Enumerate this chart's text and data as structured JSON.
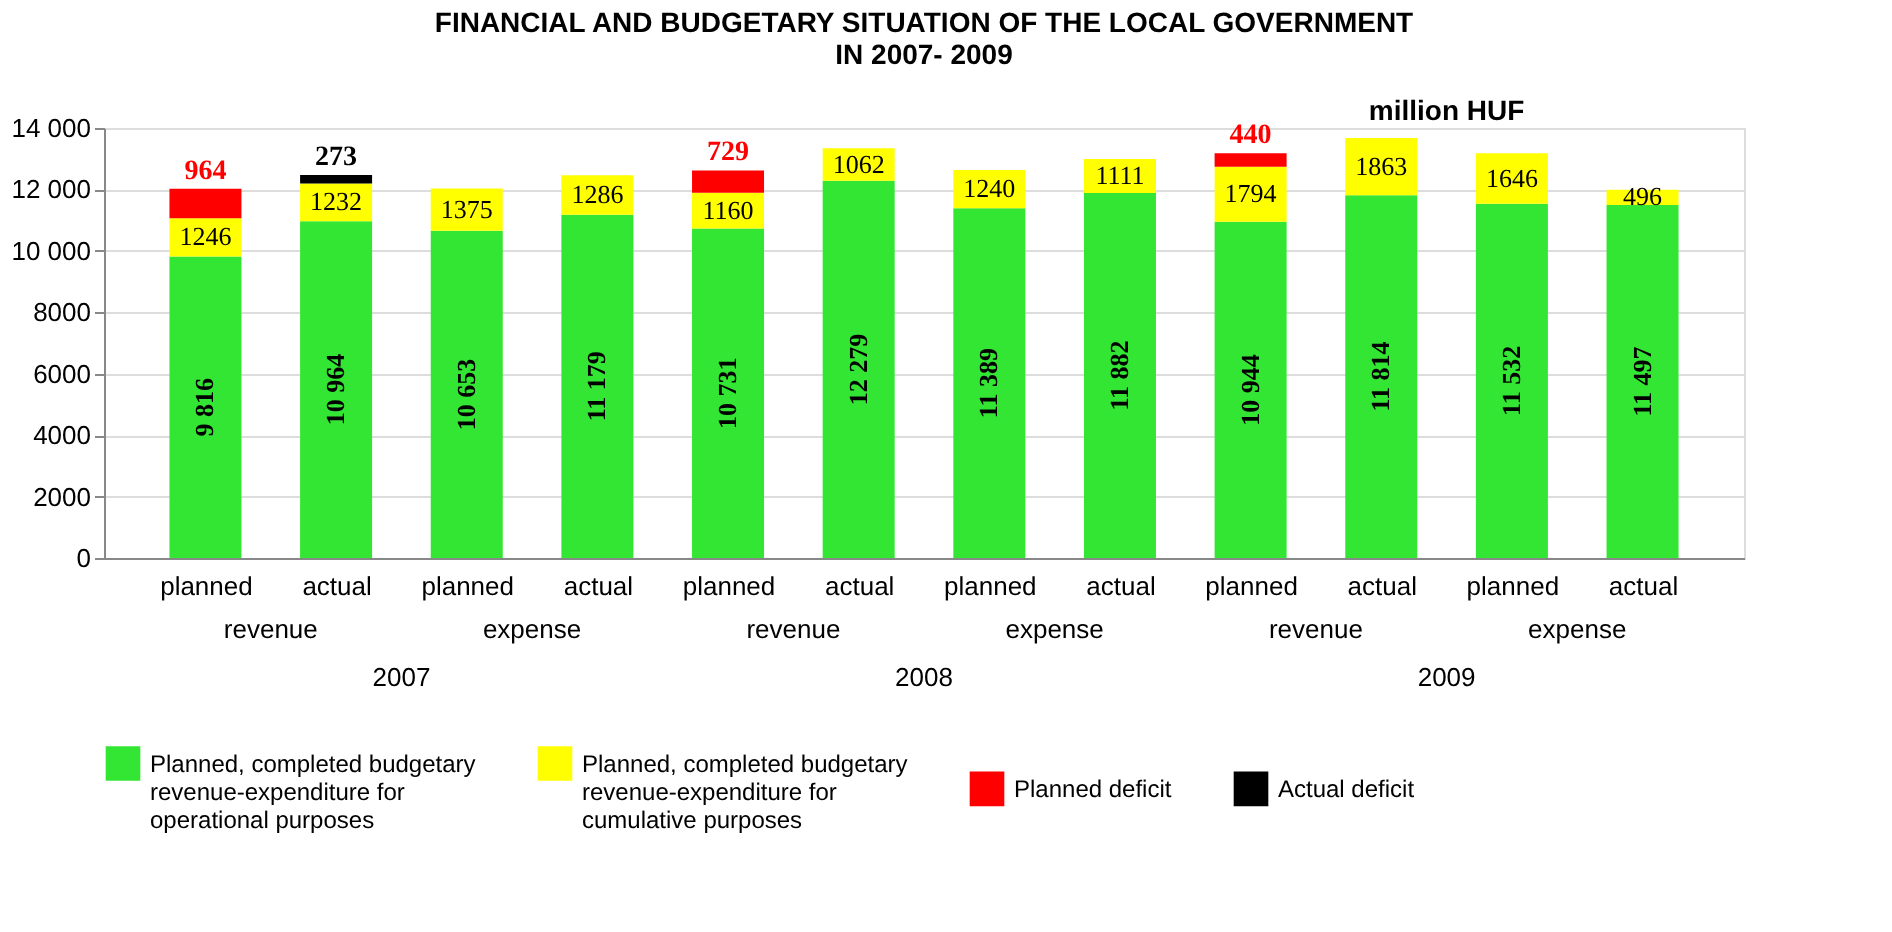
{
  "chart_data": {
    "type": "bar",
    "stacked": true,
    "title": "FINANCIAL AND BUDGETARY SITUATION OF THE LOCAL GOVERNMENT\nIN 2007- 2009",
    "categories": [
      "planned",
      "actual",
      "planned",
      "actual",
      "planned",
      "actual",
      "planned",
      "actual",
      "planned",
      "actual",
      "planned",
      "actual"
    ],
    "series": [
      {
        "name": "Planned, completed budgetary revenue-expenditure for operational purposes",
        "color": "#33e633",
        "values": [
          9816,
          10964,
          10653,
          11179,
          10731,
          12279,
          11389,
          11882,
          10944,
          11814,
          11532,
          11497
        ],
        "value_labels": [
          "9 816",
          "10 964",
          "10 653",
          "11 179",
          "10 731",
          "12 279",
          "11 389",
          "11 882",
          "10 944",
          "11 814",
          "11 532",
          "11 497"
        ]
      },
      {
        "name": "Planned, completed budgetary revenue-expenditure for cumulative purposes",
        "color": "#ffff00",
        "values": [
          1246,
          1232,
          1375,
          1286,
          1160,
          1062,
          1240,
          1111,
          1794,
          1863,
          1646,
          496
        ],
        "value_labels": [
          "1246",
          "1232",
          "1375",
          "1286",
          "1160",
          "1062",
          "1240",
          "1111",
          "1794",
          "1863",
          "1646",
          "496"
        ]
      },
      {
        "name": "Planned deficit",
        "color": "#ff0000",
        "values": [
          964,
          null,
          null,
          null,
          729,
          null,
          null,
          null,
          440,
          null,
          null,
          null
        ],
        "value_labels": [
          "964",
          null,
          null,
          null,
          "729",
          null,
          null,
          null,
          "440",
          null,
          null,
          null
        ]
      },
      {
        "name": "Actual deficit",
        "color": "#000000",
        "values": [
          null,
          273,
          null,
          null,
          null,
          null,
          null,
          null,
          null,
          null,
          null,
          null
        ],
        "value_labels": [
          null,
          "273",
          null,
          null,
          null,
          null,
          null,
          null,
          null,
          null,
          null,
          null
        ]
      }
    ],
    "ylim": [
      0,
      14000
    ],
    "yticks": [
      0,
      {
        "value": 2000,
        "label": "2000"
      },
      {
        "value": 4000,
        "label": "4000"
      },
      {
        "value": 6000,
        "label": "6000"
      },
      {
        "value": 8000,
        "label": "8000"
      },
      {
        "value": 10000,
        "label": "10 000"
      },
      {
        "value": 12000,
        "label": "12 000"
      },
      {
        "value": 14000,
        "label": "14 000"
      }
    ],
    "grid": "y",
    "legend": "bottom",
    "annotations": [
      "revenue",
      "expense",
      "revenue",
      "expense",
      "revenue",
      "expense",
      "2007",
      "2008",
      "2009",
      "million HUF"
    ]
  }
}
